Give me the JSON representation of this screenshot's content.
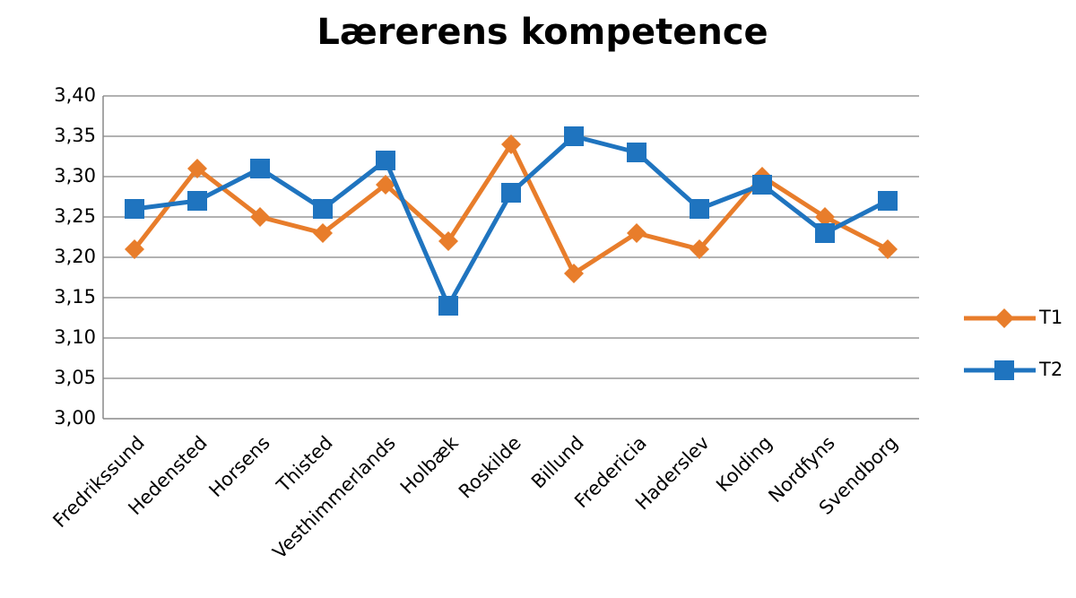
{
  "chart_data": {
    "type": "line",
    "title": "Lærerens kompetence",
    "categories": [
      "Fredrikssund",
      "Hedensted",
      "Horsens",
      "Thisted",
      "Vesthimmerlands",
      "Holbæk",
      "Roskilde",
      "Billund",
      "Fredericia",
      "Haderslev",
      "Kolding",
      "Nordfyns",
      "Svendborg"
    ],
    "series": [
      {
        "name": "T1",
        "color": "#e87d2b",
        "marker": "diamond",
        "values": [
          3.21,
          3.31,
          3.25,
          3.23,
          3.29,
          3.22,
          3.34,
          3.18,
          3.23,
          3.21,
          3.3,
          3.25,
          3.21
        ]
      },
      {
        "name": "T2",
        "color": "#1f74bf",
        "marker": "square",
        "values": [
          3.26,
          3.27,
          3.31,
          3.26,
          3.32,
          3.14,
          3.28,
          3.35,
          3.33,
          3.26,
          3.29,
          3.23,
          3.27
        ]
      }
    ],
    "ylim": [
      3.0,
      3.4
    ],
    "yticks": [
      {
        "value": 3.0,
        "label": "3,00"
      },
      {
        "value": 3.05,
        "label": "3,05"
      },
      {
        "value": 3.1,
        "label": "3,10"
      },
      {
        "value": 3.15,
        "label": "3,15"
      },
      {
        "value": 3.2,
        "label": "3,20"
      },
      {
        "value": 3.25,
        "label": "3,25"
      },
      {
        "value": 3.3,
        "label": "3,30"
      },
      {
        "value": 3.35,
        "label": "3,35"
      },
      {
        "value": 3.4,
        "label": "3,40"
      }
    ],
    "grid": true,
    "legend": "right"
  }
}
